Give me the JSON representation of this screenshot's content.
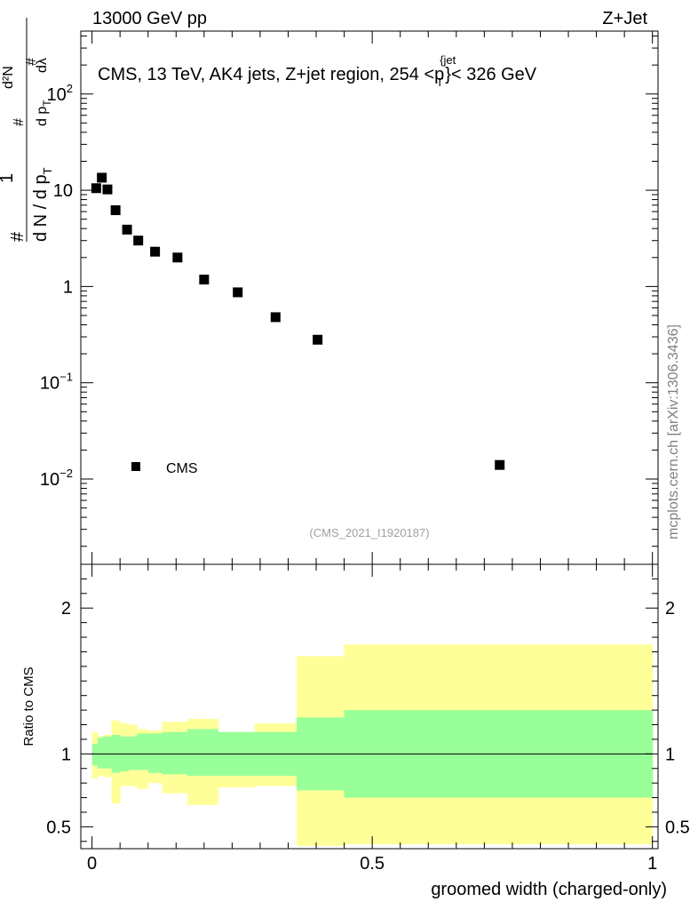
{
  "header": {
    "left": "13000 GeV pp",
    "right": "Z+Jet"
  },
  "side_label": "mcplots.cern.ch [arXiv:1306.3436]",
  "chart_data": [
    {
      "type": "scatter",
      "scale": "log",
      "title_parts": {
        "main": "CMS, 13 TeV, AK4 jets, Z+jet region, 254 <p",
        "sub": "T",
        "sup": "{jet",
        "tail": "}< 326 GeV"
      },
      "ylabel_parts": {
        "hash": "#",
        "one": "1",
        "denominator": "d N / d p",
        "sub_t": "T",
        "numerator_hash": "#",
        "numerator_d2n": "d²N",
        "numerator_hash2": "#",
        "numerator_dp": "d p",
        "numerator_dlambda": "dλ"
      },
      "ylim": [
        0.0013,
        450
      ],
      "xlim": [
        -0.02,
        1.01
      ],
      "y_tick_labels": [
        {
          "value": 100,
          "base": "10",
          "exp": "2"
        },
        {
          "value": 10,
          "base": "10",
          "exp": ""
        },
        {
          "value": 1,
          "base": "1",
          "exp": ""
        },
        {
          "value": 0.1,
          "base": "10",
          "exp": "−1"
        },
        {
          "value": 0.01,
          "base": "10",
          "exp": "−2"
        }
      ],
      "series": [
        {
          "name": "CMS",
          "x": [
            0.0075,
            0.0175,
            0.0275,
            0.042,
            0.0625,
            0.0825,
            0.1125,
            0.1525,
            0.2,
            0.26,
            0.3275,
            0.4025,
            0.7275
          ],
          "y": [
            10.5,
            13.5,
            10.2,
            6.2,
            3.9,
            3.0,
            2.3,
            2.0,
            1.18,
            0.87,
            0.48,
            0.28,
            0.014
          ]
        }
      ],
      "legend": {
        "label": "CMS",
        "position": "bottom-left"
      },
      "watermark": "(CMS_2021_I1920187)"
    },
    {
      "type": "area",
      "ylabel": "Ratio to CMS",
      "xlabel": "groomed width (charged-only)",
      "ylim": [
        0.35,
        2.3
      ],
      "xlim": [
        -0.02,
        1.01
      ],
      "x_ticks": [
        {
          "value": 0,
          "label": "0"
        },
        {
          "value": 0.5,
          "label": "0.5"
        },
        {
          "value": 1,
          "label": "1"
        }
      ],
      "y_ticks": [
        {
          "value": 2,
          "label": "2"
        },
        {
          "value": 1,
          "label": "1"
        },
        {
          "value": 0.5,
          "label": "0.5"
        }
      ],
      "reference_line": 1,
      "bin_edges": [
        0,
        0.01,
        0.02,
        0.035,
        0.05,
        0.065,
        0.08,
        0.1,
        0.125,
        0.17,
        0.225,
        0.29,
        0.365,
        0.45,
        1.0
      ],
      "band_inner": {
        "color": "#99ff99",
        "low": [
          0.92,
          0.9,
          0.9,
          0.87,
          0.88,
          0.89,
          0.89,
          0.87,
          0.86,
          0.85,
          0.85,
          0.85,
          0.75,
          0.7
        ],
        "high": [
          1.07,
          1.11,
          1.12,
          1.13,
          1.12,
          1.12,
          1.14,
          1.14,
          1.15,
          1.17,
          1.15,
          1.15,
          1.25,
          1.3
        ]
      },
      "band_outer": {
        "color": "#ffff99",
        "low": [
          0.83,
          0.85,
          0.84,
          0.66,
          0.78,
          0.78,
          0.76,
          0.8,
          0.73,
          0.65,
          0.77,
          0.78,
          0.37,
          0.38
        ],
        "high": [
          1.15,
          1.12,
          1.13,
          1.23,
          1.21,
          1.2,
          1.17,
          1.16,
          1.22,
          1.24,
          1.15,
          1.21,
          1.67,
          1.75
        ]
      }
    }
  ]
}
